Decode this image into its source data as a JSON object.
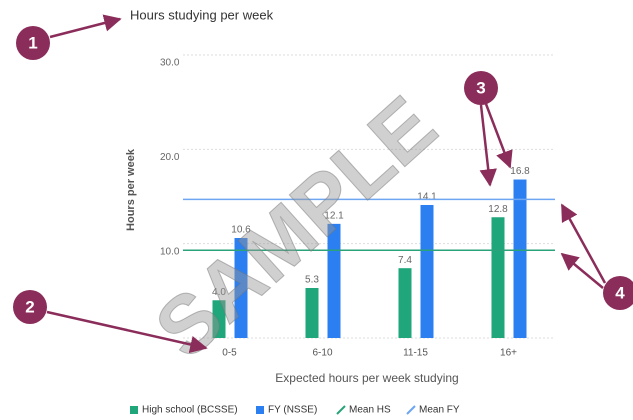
{
  "chart_data": {
    "type": "bar",
    "title": "Hours studying per week",
    "y_label": "Hours per week",
    "x_label": "Expected hours per week studying",
    "categories": [
      "0-5",
      "6-10",
      "11-15",
      "16+"
    ],
    "series": [
      {
        "name": "High school (BCSSE)",
        "color": "#1fa67a",
        "values": [
          4.0,
          5.3,
          7.4,
          12.8
        ],
        "value_labels": [
          "4.0",
          "5.3",
          "7.4",
          "12.8"
        ]
      },
      {
        "name": "FY (NSSE)",
        "color": "#2b7ff0",
        "values": [
          10.6,
          12.1,
          14.1,
          16.8
        ]
      }
    ],
    "lines": [
      {
        "name": "Mean HS",
        "color": "#2aa37a",
        "value": 9.3
      },
      {
        "name": "Mean FY",
        "color": "#6ea6f2",
        "value": 14.7
      }
    ],
    "ylim": [
      0,
      30
    ],
    "yticks": [
      {
        "value": 10,
        "label": "10.0"
      },
      {
        "value": 20,
        "label": "20.0"
      },
      {
        "value": 30,
        "label": "30.0"
      }
    ],
    "grid": true,
    "legend": "bottom",
    "watermark": "SAMPLE",
    "annotations": [
      "1",
      "2",
      "3",
      "4"
    ]
  }
}
